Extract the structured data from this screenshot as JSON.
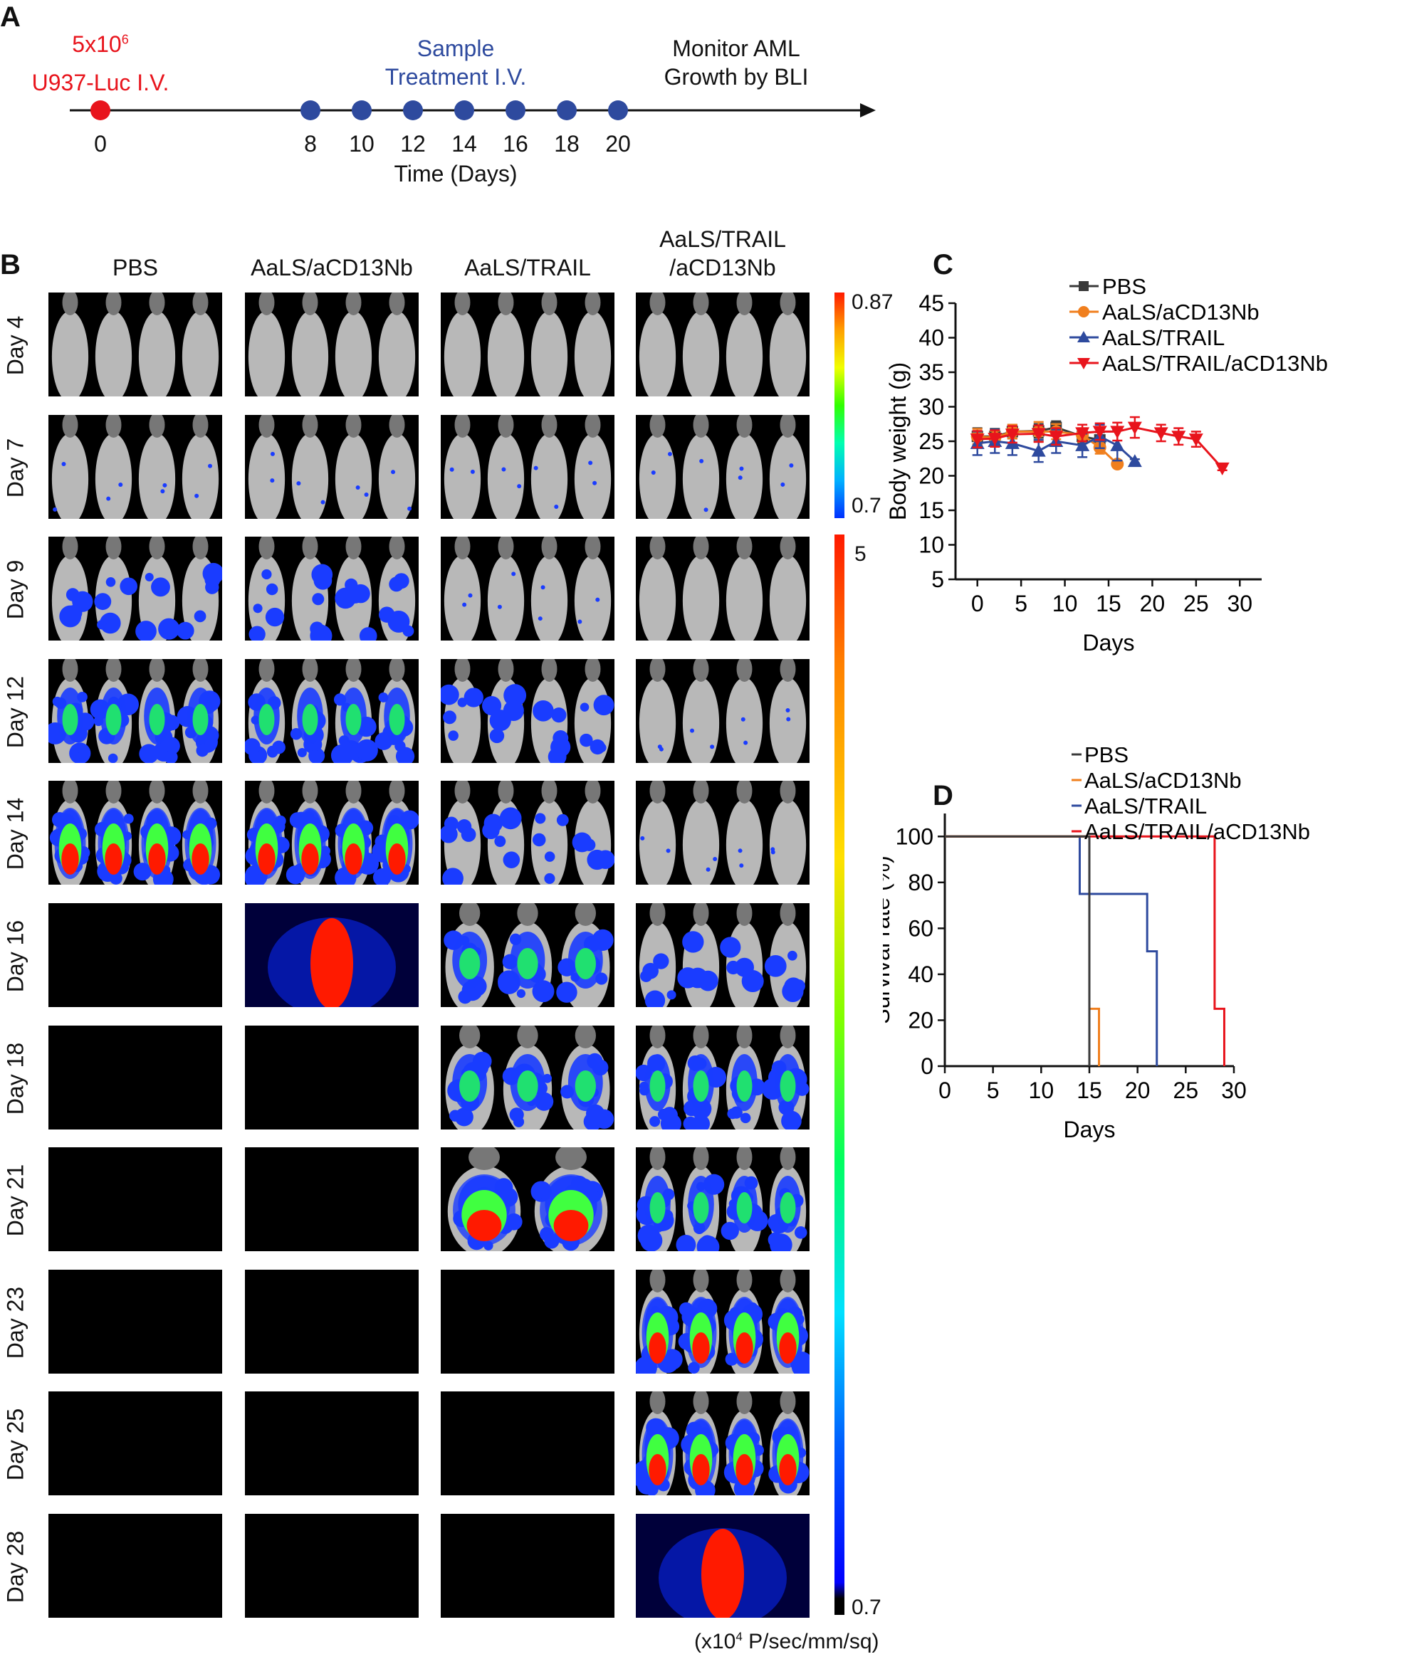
{
  "panelA": {
    "letter": "A",
    "injection_line1": "5x10",
    "injection_sup": "6",
    "injection_line2": "U937-Luc I.V.",
    "treatment_line1": "Sample",
    "treatment_line2": "Treatment I.V.",
    "monitor_line1": "Monitor AML",
    "monitor_line2": "Growth by BLI",
    "days": [
      "0",
      "8",
      "10",
      "12",
      "14",
      "16",
      "18",
      "20"
    ],
    "axis_label": "Time (Days)",
    "colors": {
      "injection": "#e8141c",
      "treatment": "#2e4a9e"
    }
  },
  "panelB": {
    "letter": "B",
    "columns": [
      "PBS",
      "AaLS/aCD13Nb",
      "AaLS/TRAIL",
      "AaLS/TRAIL\n/aCD13Nb"
    ],
    "column_line1": [
      "PBS",
      "AaLS/aCD13Nb",
      "AaLS/TRAIL",
      "AaLS/TRAIL"
    ],
    "column_line2": [
      "",
      "",
      "",
      "/aCD13Nb"
    ],
    "rows": [
      {
        "label": "Day 4",
        "cells": [
          [
            4,
            0
          ],
          [
            4,
            0
          ],
          [
            4,
            0
          ],
          [
            4,
            0
          ]
        ]
      },
      {
        "label": "Day 7",
        "cells": [
          [
            4,
            1
          ],
          [
            4,
            1
          ],
          [
            4,
            1
          ],
          [
            4,
            1
          ]
        ]
      },
      {
        "label": "Day 9",
        "cells": [
          [
            4,
            2
          ],
          [
            4,
            2
          ],
          [
            4,
            1
          ],
          [
            4,
            0
          ]
        ]
      },
      {
        "label": "Day 12",
        "cells": [
          [
            4,
            3
          ],
          [
            4,
            3
          ],
          [
            4,
            2
          ],
          [
            4,
            1
          ]
        ]
      },
      {
        "label": "Day 14",
        "cells": [
          [
            4,
            4
          ],
          [
            4,
            4
          ],
          [
            4,
            2
          ],
          [
            4,
            1
          ]
        ]
      },
      {
        "label": "Day 16",
        "cells": [
          [
            0,
            0
          ],
          [
            1,
            5
          ],
          [
            3,
            3
          ],
          [
            4,
            2
          ]
        ]
      },
      {
        "label": "Day 18",
        "cells": [
          [
            0,
            0
          ],
          [
            0,
            0
          ],
          [
            3,
            3
          ],
          [
            4,
            3
          ]
        ]
      },
      {
        "label": "Day 21",
        "cells": [
          [
            0,
            0
          ],
          [
            0,
            0
          ],
          [
            2,
            4
          ],
          [
            4,
            3
          ]
        ]
      },
      {
        "label": "Day 23",
        "cells": [
          [
            0,
            0
          ],
          [
            0,
            0
          ],
          [
            0,
            0
          ],
          [
            4,
            4
          ]
        ]
      },
      {
        "label": "Day 25",
        "cells": [
          [
            0,
            0
          ],
          [
            0,
            0
          ],
          [
            0,
            0
          ],
          [
            4,
            4
          ]
        ]
      },
      {
        "label": "Day 28",
        "cells": [
          [
            0,
            0
          ],
          [
            0,
            0
          ],
          [
            0,
            0
          ],
          [
            1,
            5
          ]
        ]
      }
    ],
    "colorbar_top": {
      "max": "0.87",
      "min": "0.7"
    },
    "colorbar_bottom": {
      "max": "5",
      "min": "0.7"
    },
    "units_prefix": "(x10",
    "units_sup": "4",
    "units_suffix": " P/sec/mm/sq)"
  },
  "chart_data": [
    {
      "panel": "C",
      "type": "line",
      "xlabel": "Days",
      "ylabel": "Body weight (g)",
      "xlim": [
        -2.5,
        32.5
      ],
      "ylim": [
        5,
        45
      ],
      "xticks": [
        0,
        5,
        10,
        15,
        20,
        25,
        30
      ],
      "yticks": [
        5,
        10,
        15,
        20,
        25,
        30,
        35,
        40,
        45
      ],
      "legend": "top-right",
      "series": [
        {
          "name": "PBS",
          "color": "#3a3a3a",
          "marker": "square",
          "x": [
            0,
            2,
            4,
            7,
            9,
            12,
            14
          ],
          "y": [
            25.7,
            25.7,
            26.4,
            26.5,
            27.0,
            25.7,
            25.2
          ],
          "error": [
            1.2,
            1.1,
            1.0,
            1.0,
            0.9,
            1.0,
            1.1
          ]
        },
        {
          "name": "AaLS/aCD13Nb",
          "color": "#f07f1e",
          "marker": "circle",
          "x": [
            0,
            2,
            4,
            7,
            9,
            12,
            14,
            16
          ],
          "y": [
            25.7,
            25.5,
            26.4,
            26.4,
            26.4,
            25.9,
            24.1,
            21.7
          ],
          "error": [
            1.1,
            1.0,
            1.0,
            1.4,
            1.1,
            1.0,
            0.9,
            0.3
          ]
        },
        {
          "name": "AaLS/TRAIL",
          "color": "#2e4a9e",
          "marker": "triangle-up",
          "x": [
            0,
            2,
            4,
            7,
            9,
            12,
            14,
            16,
            18
          ],
          "y": [
            24.7,
            25.0,
            24.7,
            23.6,
            25.0,
            24.4,
            25.7,
            24.4,
            22.1
          ],
          "error": [
            1.7,
            1.7,
            1.7,
            1.6,
            1.7,
            1.7,
            1.7,
            2.2,
            0.3
          ]
        },
        {
          "name": "AaLS/TRAIL/aCD13Nb",
          "color": "#e8141c",
          "marker": "triangle-down",
          "x": [
            0,
            2,
            4,
            7,
            9,
            12,
            14,
            16,
            18,
            21,
            23,
            25,
            28
          ],
          "y": [
            25.3,
            25.4,
            26.0,
            26.1,
            25.7,
            26.2,
            26.4,
            26.4,
            27.0,
            26.2,
            25.7,
            25.3,
            21.1
          ],
          "error": [
            1.2,
            1.2,
            1.2,
            1.2,
            1.2,
            1.2,
            1.2,
            1.3,
            1.5,
            1.2,
            1.2,
            1.1,
            0.3
          ]
        }
      ]
    },
    {
      "panel": "D",
      "type": "line",
      "step": true,
      "xlabel": "Days",
      "ylabel": "Survival rate (%)",
      "xlim": [
        0,
        30
      ],
      "ylim": [
        0,
        110
      ],
      "xticks": [
        0,
        5,
        10,
        15,
        20,
        25,
        30
      ],
      "yticks": [
        0,
        20,
        40,
        60,
        80,
        100
      ],
      "legend": "top-right",
      "series": [
        {
          "name": "PBS",
          "color": "#3a3a3a",
          "x": [
            0,
            15,
            15
          ],
          "y": [
            100,
            100,
            0
          ]
        },
        {
          "name": "AaLS/aCD13Nb",
          "color": "#f07f1e",
          "x": [
            0,
            15,
            15,
            16,
            16
          ],
          "y": [
            100,
            100,
            25,
            25,
            0
          ]
        },
        {
          "name": "AaLS/TRAIL",
          "color": "#2e4a9e",
          "x": [
            0,
            14,
            14,
            21,
            21,
            22,
            22
          ],
          "y": [
            100,
            100,
            75,
            75,
            50,
            50,
            0
          ]
        },
        {
          "name": "AaLS/TRAIL/aCD13Nb",
          "color": "#e8141c",
          "x": [
            0,
            28,
            28,
            29,
            29
          ],
          "y": [
            100,
            100,
            25,
            25,
            0
          ]
        }
      ]
    }
  ]
}
